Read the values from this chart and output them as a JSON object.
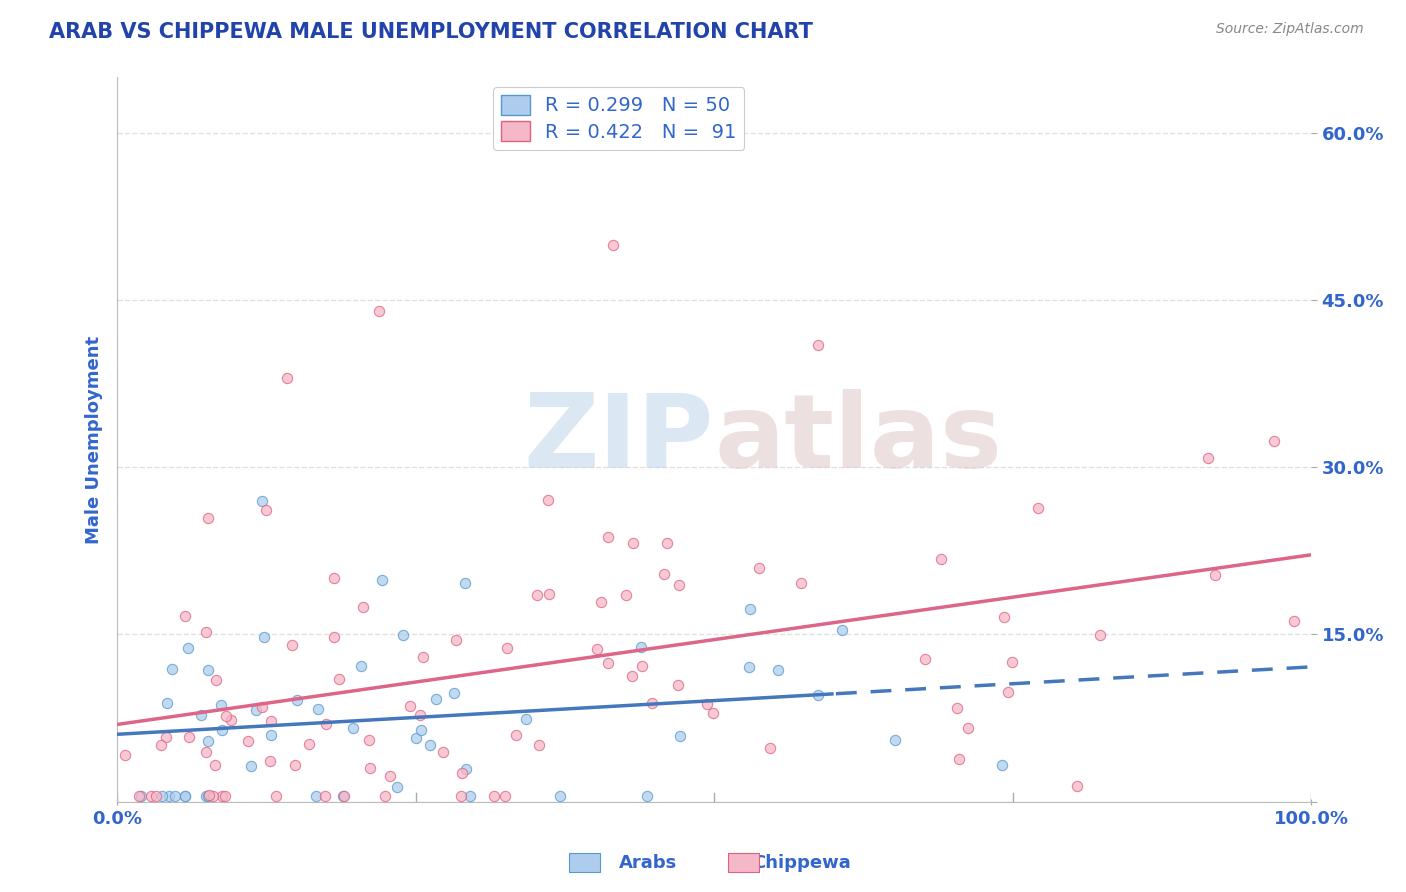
{
  "title": "ARAB VS CHIPPEWA MALE UNEMPLOYMENT CORRELATION CHART",
  "source": "Source: ZipAtlas.com",
  "ylabel": "Male Unemployment",
  "yticks": [
    0.0,
    0.15,
    0.3,
    0.45,
    0.6
  ],
  "ytick_labels": [
    "",
    "15.0%",
    "30.0%",
    "45.0%",
    "60.0%"
  ],
  "xtick_vals": [
    0.0,
    1.0
  ],
  "xtick_labels": [
    "0.0%",
    "100.0%"
  ],
  "xlim": [
    0.0,
    1.0
  ],
  "ylim": [
    0.0,
    0.65
  ],
  "legend_arab_R": "0.299",
  "legend_arab_N": "50",
  "legend_chippewa_R": "0.422",
  "legend_chippewa_N": "91",
  "arab_fill_color": "#AECDEE",
  "arab_edge_color": "#5599CC",
  "chippewa_fill_color": "#F5B8C8",
  "chippewa_edge_color": "#E06080",
  "arab_line_color": "#4477BB",
  "chippewa_line_color": "#DD6688",
  "title_color": "#2244AA",
  "label_color": "#3366CC",
  "source_color": "#888888",
  "grid_color": "#DDDDDD",
  "background_color": "#FFFFFF",
  "watermark_zip_color": "#C5D8EE",
  "watermark_atlas_color": "#DFC8C8",
  "arab_dot_size": 55,
  "chippewa_dot_size": 55,
  "arab_line_solid_end": 0.6,
  "arab_line_dashed_start": 0.6,
  "scatter_alpha": 0.75,
  "line_width": 2.5
}
